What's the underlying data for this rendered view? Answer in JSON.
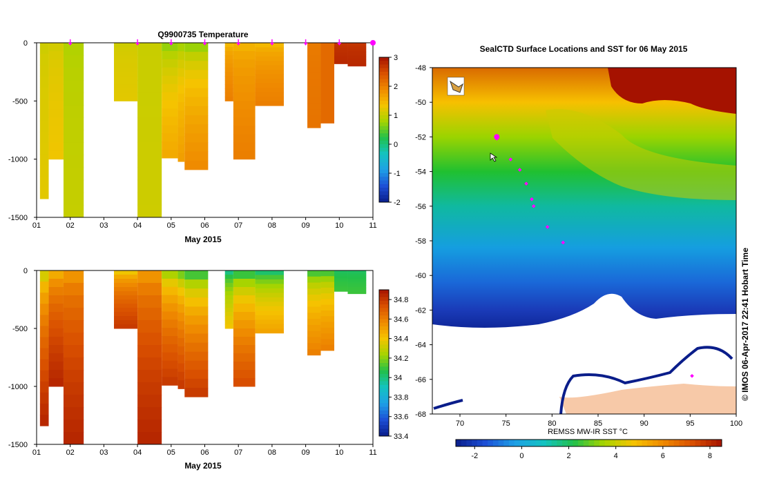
{
  "chart_data": [
    {
      "type": "heatmap",
      "title": "Q9900735  Temperature",
      "xlabel": "May 2015",
      "ylabel": "",
      "x_ticks": [
        "01",
        "02",
        "03",
        "04",
        "05",
        "06",
        "07",
        "08",
        "09",
        "10",
        "11"
      ],
      "y_ticks": [
        "0",
        "-500",
        "-1000",
        "-1500"
      ],
      "ylim": [
        -1500,
        0
      ],
      "colorbar": {
        "min": -2,
        "max": 3,
        "ticks": [
          "3",
          "2",
          "1",
          "0",
          "-1",
          "-2"
        ]
      },
      "profiles": [
        {
          "day": 1.1,
          "end_day": 1.36,
          "max_depth": 1340,
          "surface": 1.0,
          "deep": 1.2
        },
        {
          "day": 1.36,
          "end_day": 1.8,
          "max_depth": 1000,
          "surface": 1.0,
          "deep": 1.3
        },
        {
          "day": 1.8,
          "end_day": 2.4,
          "max_depth": 1500,
          "surface": 0.8,
          "deep": 1.0
        },
        {
          "day": 3.3,
          "end_day": 4.0,
          "max_depth": 500,
          "surface": 1.0,
          "deep": 1.2
        },
        {
          "day": 4.0,
          "end_day": 4.72,
          "max_depth": 1500,
          "surface": 1.0,
          "deep": 1.05
        },
        {
          "day": 4.72,
          "end_day": 5.2,
          "max_depth": 990,
          "surface": 0.3,
          "deep": 1.6
        },
        {
          "day": 5.2,
          "end_day": 5.4,
          "max_depth": 1020,
          "surface": 0.4,
          "deep": 1.7
        },
        {
          "day": 5.4,
          "end_day": 6.1,
          "max_depth": 1090,
          "surface": 0.2,
          "deep": 1.9
        },
        {
          "day": 6.6,
          "end_day": 6.85,
          "max_depth": 500,
          "surface": 1.2,
          "deep": 2.0
        },
        {
          "day": 6.85,
          "end_day": 7.5,
          "max_depth": 1000,
          "surface": 1.3,
          "deep": 2.0
        },
        {
          "day": 7.5,
          "end_day": 8.35,
          "max_depth": 540,
          "surface": 1.2,
          "deep": 2.0
        },
        {
          "day": 9.05,
          "end_day": 9.45,
          "max_depth": 730,
          "surface": 2.0,
          "deep": 2.1
        },
        {
          "day": 9.45,
          "end_day": 9.85,
          "max_depth": 690,
          "surface": 2.2,
          "deep": 2.2
        },
        {
          "day": 9.85,
          "end_day": 10.25,
          "max_depth": 180,
          "surface": 2.6,
          "deep": 2.8
        },
        {
          "day": 10.25,
          "end_day": 10.8,
          "max_depth": 200,
          "surface": 2.6,
          "deep": 2.8
        }
      ],
      "profile_markers_days": [
        2.0,
        4.0,
        5.0,
        6.0,
        7.0,
        8.0,
        9.0,
        10.0,
        11.0
      ]
    },
    {
      "type": "heatmap",
      "title": "",
      "xlabel": "May 2015",
      "ylabel": "",
      "x_ticks": [
        "01",
        "02",
        "03",
        "04",
        "05",
        "06",
        "07",
        "08",
        "09",
        "10",
        "11"
      ],
      "y_ticks": [
        "0",
        "-500",
        "-1000",
        "-1500"
      ],
      "ylim": [
        -1500,
        0
      ],
      "colorbar": {
        "min": 33.4,
        "max": 34.9,
        "ticks": [
          "34.8",
          "34.6",
          "34.4",
          "34.2",
          "34",
          "33.8",
          "33.6",
          "33.4"
        ]
      },
      "profiles": [
        {
          "day": 1.1,
          "end_day": 1.36,
          "max_depth": 1340,
          "surface": 34.1,
          "deep": 34.85
        },
        {
          "day": 1.36,
          "end_day": 1.8,
          "max_depth": 1000,
          "surface": 34.3,
          "deep": 34.85
        },
        {
          "day": 1.8,
          "end_day": 2.4,
          "max_depth": 1500,
          "surface": 34.4,
          "deep": 34.85
        },
        {
          "day": 3.3,
          "end_day": 4.0,
          "max_depth": 500,
          "surface": 34.2,
          "deep": 34.8
        },
        {
          "day": 4.0,
          "end_day": 4.72,
          "max_depth": 1500,
          "surface": 34.4,
          "deep": 34.85
        },
        {
          "day": 4.72,
          "end_day": 5.2,
          "max_depth": 990,
          "surface": 34.0,
          "deep": 34.8
        },
        {
          "day": 5.2,
          "end_day": 5.4,
          "max_depth": 1020,
          "surface": 33.9,
          "deep": 34.8
        },
        {
          "day": 5.4,
          "end_day": 6.1,
          "max_depth": 1090,
          "surface": 33.8,
          "deep": 34.8
        },
        {
          "day": 6.6,
          "end_day": 6.85,
          "max_depth": 500,
          "surface": 33.8,
          "deep": 34.4
        },
        {
          "day": 6.85,
          "end_day": 7.5,
          "max_depth": 1000,
          "surface": 33.8,
          "deep": 34.75
        },
        {
          "day": 7.5,
          "end_day": 8.35,
          "max_depth": 540,
          "surface": 33.8,
          "deep": 34.5
        },
        {
          "day": 9.05,
          "end_day": 9.45,
          "max_depth": 730,
          "surface": 33.9,
          "deep": 34.6
        },
        {
          "day": 9.45,
          "end_day": 9.85,
          "max_depth": 690,
          "surface": 33.9,
          "deep": 34.6
        },
        {
          "day": 9.85,
          "end_day": 10.25,
          "max_depth": 180,
          "surface": 34.0,
          "deep": 34.1
        },
        {
          "day": 10.25,
          "end_day": 10.8,
          "max_depth": 200,
          "surface": 34.0,
          "deep": 34.1
        }
      ]
    },
    {
      "type": "heatmap",
      "title": "SealCTD Surface Locations and SST for 06 May 2015",
      "xlabel": "",
      "ylabel": "",
      "xlim": [
        67,
        100
      ],
      "ylim": [
        -68,
        -48
      ],
      "x_ticks": [
        "70",
        "75",
        "80",
        "85",
        "90",
        "95",
        "100"
      ],
      "y_ticks": [
        "-48",
        "-50",
        "-52",
        "-54",
        "-56",
        "-58",
        "-60",
        "-62",
        "-64",
        "-66",
        "-68"
      ],
      "colorbar": {
        "label": "REMSS MW-IR SST °C",
        "min": -2.8,
        "max": 8.5,
        "ticks": [
          "-2",
          "0",
          "2",
          "4",
          "6",
          "8"
        ]
      },
      "seal_track": [
        {
          "lon": 74.0,
          "lat": -52.1
        },
        {
          "lon": 75.5,
          "lat": -53.3
        },
        {
          "lon": 76.5,
          "lat": -53.9
        },
        {
          "lon": 77.2,
          "lat": -54.7
        },
        {
          "lon": 77.8,
          "lat": -55.6
        },
        {
          "lon": 78.0,
          "lat": -56.0
        },
        {
          "lon": 79.5,
          "lat": -57.2
        },
        {
          "lon": 81.2,
          "lat": -58.1
        },
        {
          "lon": 95.2,
          "lat": -65.8
        }
      ],
      "latest_position": {
        "lon": 74.0,
        "lat": -52.0
      }
    }
  ],
  "side_credit": "© IMOS 06-Apr-2017 22:41 Hobart Time",
  "colors": {
    "profile_marker": "#ff00ff",
    "seal_track": "#ff00ff",
    "ice": "#ffffff",
    "land": "#f7c9a8"
  }
}
